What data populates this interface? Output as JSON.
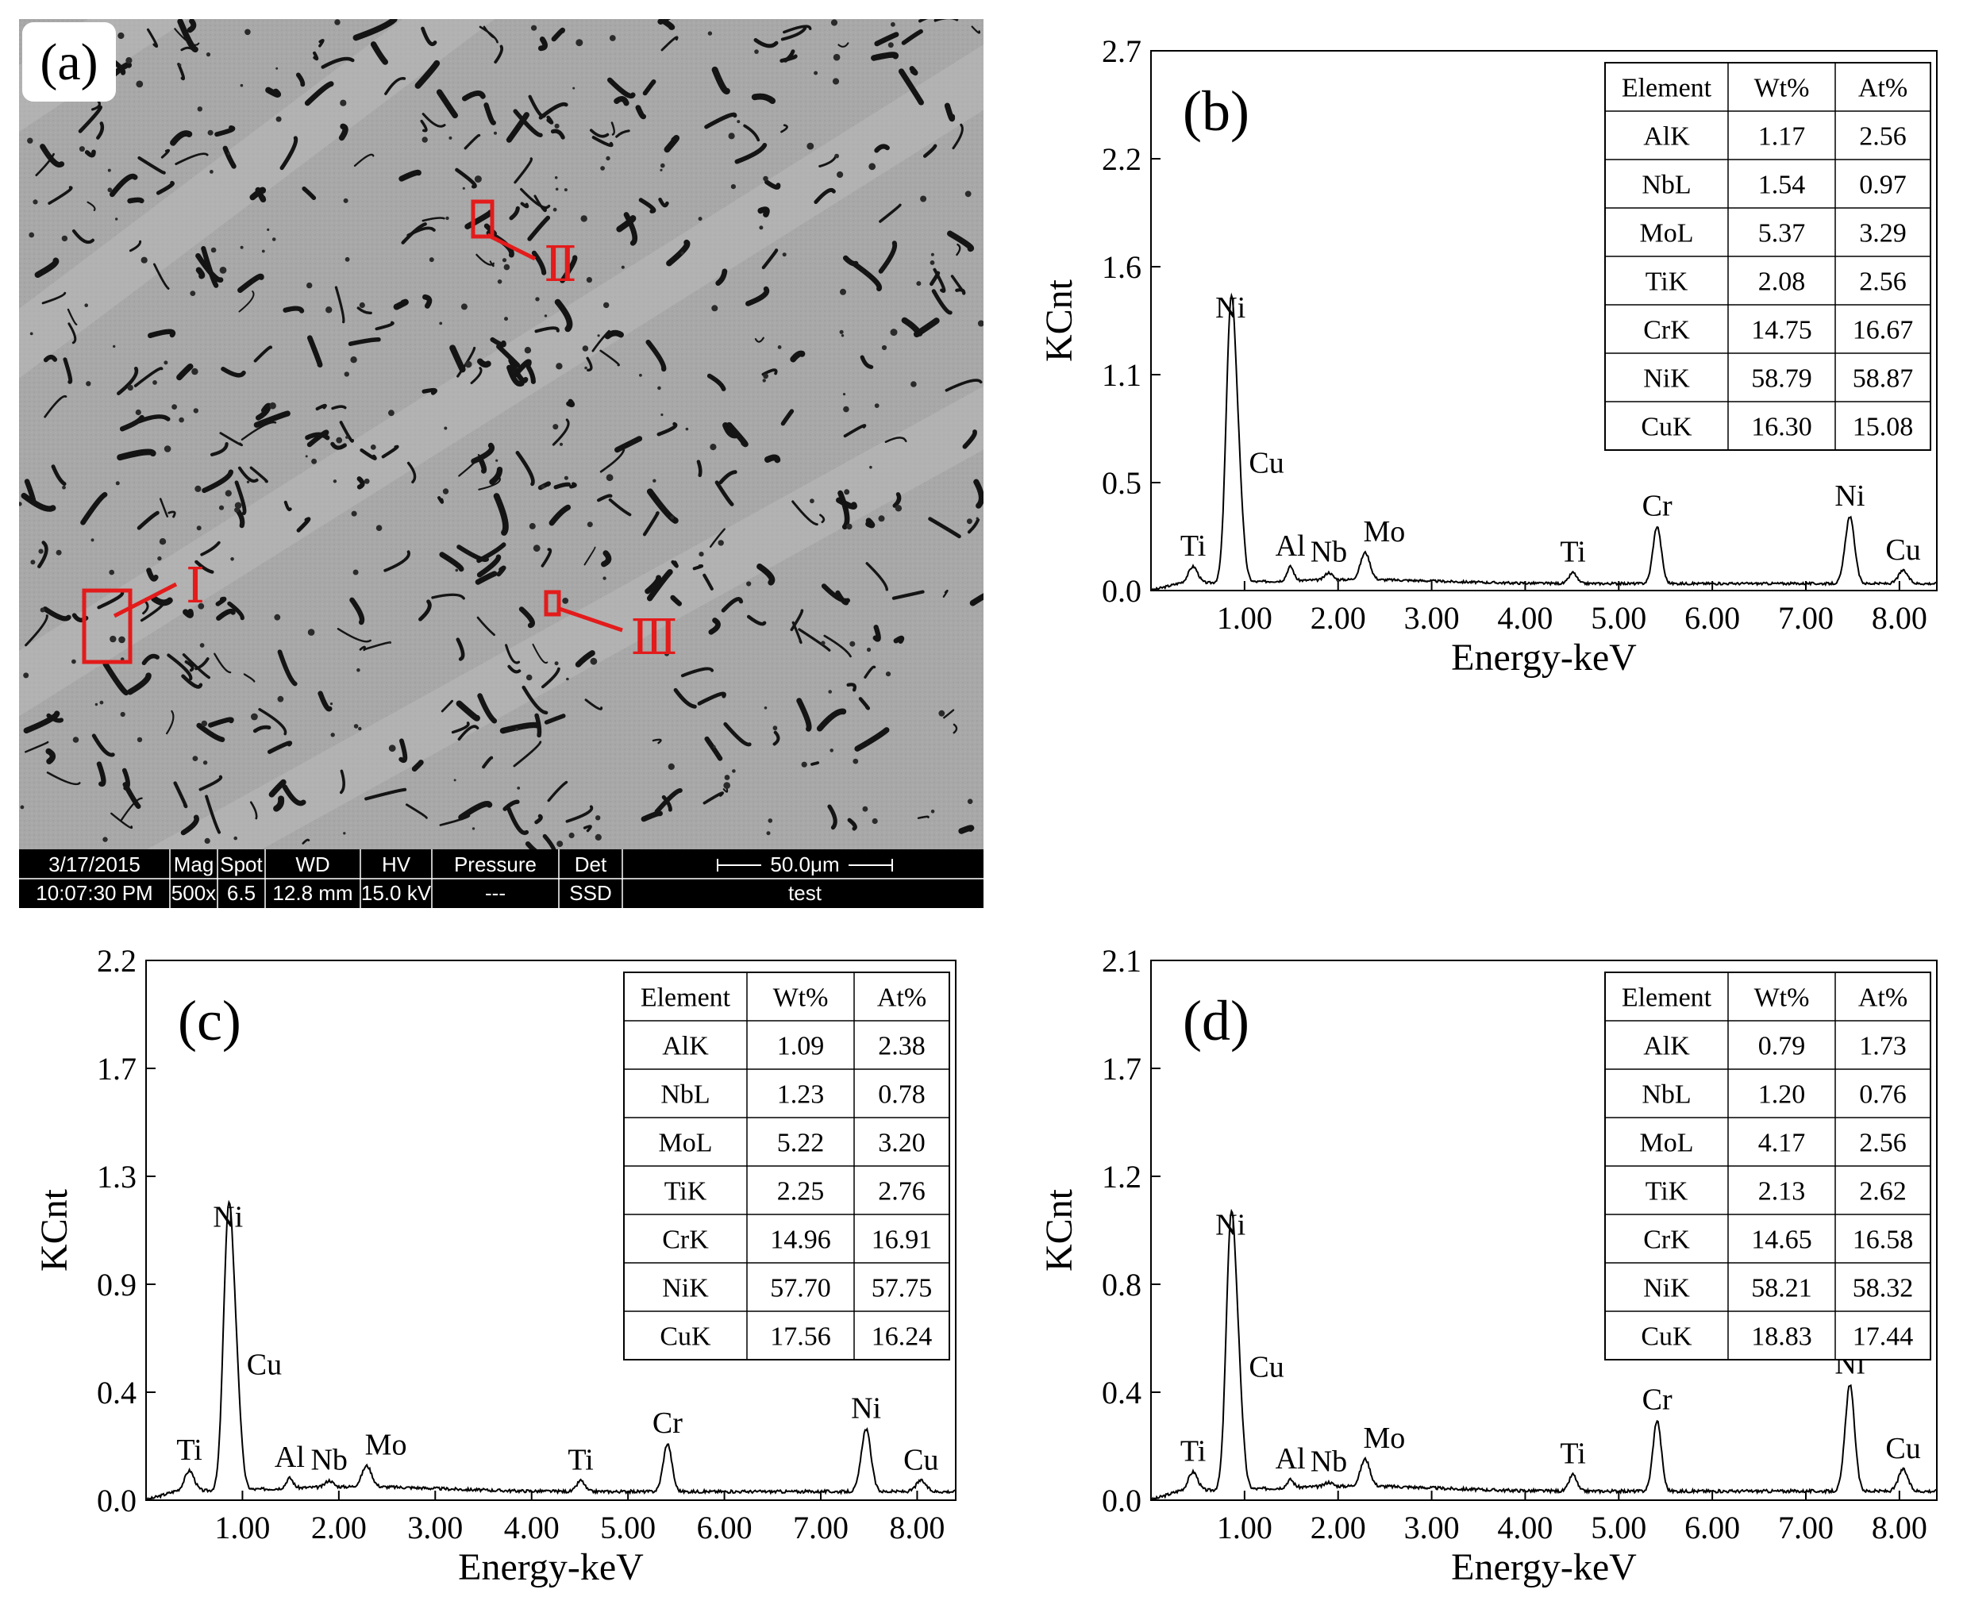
{
  "panel_a": {
    "label": "(a)",
    "regions": [
      {
        "label": "Ⅰ"
      },
      {
        "label": "Ⅱ"
      },
      {
        "label": "Ⅲ"
      }
    ],
    "info_bar": {
      "date": "3/17/2015",
      "time": "10:07:30 PM",
      "mag_label": "Mag",
      "mag_value": "500x",
      "spot_label": "Spot",
      "spot_value": "6.5",
      "wd_label": "WD",
      "wd_value": "12.8 mm",
      "hv_label": "HV",
      "hv_value": "15.0 kV",
      "pressure_label": "Pressure",
      "pressure_value": "---",
      "det_label": "Det",
      "det_value": "SSD",
      "scale_label": "50.0μm",
      "name_value": "test"
    },
    "colors": {
      "marker": "#e31b1b",
      "bar": "#000000"
    }
  },
  "chart_data": [
    {
      "panel_label": "(b)",
      "type": "line",
      "xlabel": "Energy-keV",
      "ylabel": "KCnt",
      "xlim": [
        0,
        8.4
      ],
      "ylim": [
        0.0,
        2.7
      ],
      "xticks": [
        "1.00",
        "2.00",
        "3.00",
        "4.00",
        "5.00",
        "6.00",
        "7.00",
        "8.00"
      ],
      "yticks": [
        "0.0",
        "0.5",
        "1.1",
        "1.6",
        "2.2",
        "2.7"
      ],
      "peaks": [
        {
          "label": "Ti",
          "x": 0.45,
          "y": 0.12
        },
        {
          "label": "Ni",
          "x": 0.85,
          "y": 1.31
        },
        {
          "label": "Cu",
          "x": 0.93,
          "y": 0.55
        },
        {
          "label": "Al",
          "x": 1.49,
          "y": 0.12
        },
        {
          "label": "Nb",
          "x": 1.9,
          "y": 0.09
        },
        {
          "label": "Mo",
          "x": 2.29,
          "y": 0.19
        },
        {
          "label": "Ti",
          "x": 4.51,
          "y": 0.09
        },
        {
          "label": "Cr",
          "x": 5.41,
          "y": 0.32
        },
        {
          "label": "Ni",
          "x": 7.47,
          "y": 0.37
        },
        {
          "label": "Cu",
          "x": 8.04,
          "y": 0.1
        }
      ],
      "table": {
        "columns": [
          "Element",
          "Wt%",
          "At%"
        ],
        "rows": [
          [
            "AlK",
            "1.17",
            "2.56"
          ],
          [
            "NbL",
            "1.54",
            "0.97"
          ],
          [
            "MoL",
            "5.37",
            "3.29"
          ],
          [
            "TiK",
            "2.08",
            "2.56"
          ],
          [
            "CrK",
            "14.75",
            "16.67"
          ],
          [
            "NiK",
            "58.79",
            "58.87"
          ],
          [
            "CuK",
            "16.30",
            "15.08"
          ]
        ]
      }
    },
    {
      "panel_label": "(c)",
      "type": "line",
      "xlabel": "Energy-keV",
      "ylabel": "KCnt",
      "xlim": [
        0,
        8.4
      ],
      "ylim": [
        0.0,
        2.2
      ],
      "xticks": [
        "1.00",
        "2.00",
        "3.00",
        "4.00",
        "5.00",
        "6.00",
        "7.00",
        "8.00"
      ],
      "yticks": [
        "0.0",
        "0.4",
        "0.9",
        "1.3",
        "1.7",
        "2.2"
      ],
      "peaks": [
        {
          "label": "Ti",
          "x": 0.45,
          "y": 0.12
        },
        {
          "label": "Ni",
          "x": 0.85,
          "y": 1.07
        },
        {
          "label": "Cu",
          "x": 0.93,
          "y": 0.48
        },
        {
          "label": "Al",
          "x": 1.49,
          "y": 0.09
        },
        {
          "label": "Nb",
          "x": 1.9,
          "y": 0.08
        },
        {
          "label": "Mo",
          "x": 2.29,
          "y": 0.14
        },
        {
          "label": "Ti",
          "x": 4.51,
          "y": 0.08
        },
        {
          "label": "Cr",
          "x": 5.41,
          "y": 0.23
        },
        {
          "label": "Ni",
          "x": 7.47,
          "y": 0.29
        },
        {
          "label": "Cu",
          "x": 8.04,
          "y": 0.08
        }
      ],
      "table": {
        "columns": [
          "Element",
          "Wt%",
          "At%"
        ],
        "rows": [
          [
            "AlK",
            "1.09",
            "2.38"
          ],
          [
            "NbL",
            "1.23",
            "0.78"
          ],
          [
            "MoL",
            "5.22",
            "3.20"
          ],
          [
            "TiK",
            "2.25",
            "2.76"
          ],
          [
            "CrK",
            "14.96",
            "16.91"
          ],
          [
            "NiK",
            "57.70",
            "57.75"
          ],
          [
            "CuK",
            "17.56",
            "16.24"
          ]
        ]
      }
    },
    {
      "panel_label": "(d)",
      "type": "line",
      "xlabel": "Energy-keV",
      "ylabel": "KCnt",
      "xlim": [
        0,
        8.4
      ],
      "ylim": [
        0.0,
        2.1
      ],
      "xticks": [
        "1.00",
        "2.00",
        "3.00",
        "4.00",
        "5.00",
        "6.00",
        "7.00",
        "8.00"
      ],
      "yticks": [
        "0.0",
        "0.4",
        "0.8",
        "1.2",
        "1.7",
        "2.1"
      ],
      "peaks": [
        {
          "label": "Ti",
          "x": 0.45,
          "y": 0.11
        },
        {
          "label": "Ni",
          "x": 0.85,
          "y": 0.99
        },
        {
          "label": "Cu",
          "x": 0.93,
          "y": 0.45
        },
        {
          "label": "Al",
          "x": 1.49,
          "y": 0.08
        },
        {
          "label": "Nb",
          "x": 1.9,
          "y": 0.07
        },
        {
          "label": "Mo",
          "x": 2.29,
          "y": 0.16
        },
        {
          "label": "Ti",
          "x": 4.51,
          "y": 0.1
        },
        {
          "label": "Cr",
          "x": 5.41,
          "y": 0.31
        },
        {
          "label": "Ni",
          "x": 7.47,
          "y": 0.45
        },
        {
          "label": "Cu",
          "x": 8.04,
          "y": 0.12
        }
      ],
      "table": {
        "columns": [
          "Element",
          "Wt%",
          "At%"
        ],
        "rows": [
          [
            "AlK",
            "0.79",
            "1.73"
          ],
          [
            "NbL",
            "1.20",
            "0.76"
          ],
          [
            "MoL",
            "4.17",
            "2.56"
          ],
          [
            "TiK",
            "2.13",
            "2.62"
          ],
          [
            "CrK",
            "14.65",
            "16.58"
          ],
          [
            "NiK",
            "58.21",
            "58.32"
          ],
          [
            "CuK",
            "18.83",
            "17.44"
          ]
        ]
      }
    }
  ]
}
